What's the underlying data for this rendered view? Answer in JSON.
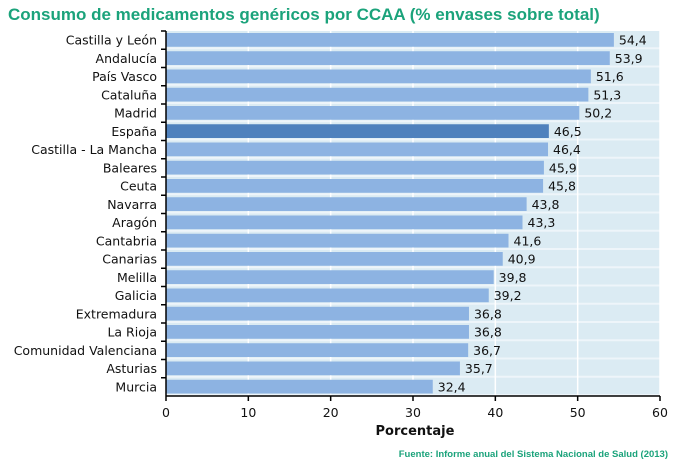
{
  "chart_data": {
    "type": "bar",
    "orientation": "horizontal",
    "title": "Consumo de medicamentos genéricos por CCAA (% envases sobre total)",
    "xlabel": "Porcentaje",
    "ylabel": "",
    "xlim": [
      0,
      60
    ],
    "xticks": [
      0,
      10,
      20,
      30,
      40,
      50,
      60
    ],
    "grid": true,
    "categories": [
      "Castilla y León",
      "Andalucía",
      "País Vasco",
      "Cataluña",
      "Madrid",
      "España",
      "Castilla - La Mancha",
      "Baleares",
      "Ceuta",
      "Navarra",
      "Aragón",
      "Cantabria",
      "Canarias",
      "Melilla",
      "Galicia",
      "Extremadura",
      "La Rioja",
      "Comunidad Valenciana",
      "Asturias",
      "Murcia"
    ],
    "values": [
      54.4,
      53.9,
      51.6,
      51.3,
      50.2,
      46.5,
      46.4,
      45.9,
      45.8,
      43.8,
      43.3,
      41.6,
      40.9,
      39.8,
      39.2,
      36.8,
      36.8,
      36.7,
      35.7,
      32.4
    ],
    "value_labels": [
      "54,4",
      "53,9",
      "51,6",
      "51,3",
      "50,2",
      "46,5",
      "46,4",
      "45,9",
      "45,8",
      "43,8",
      "43,3",
      "41,6",
      "40,9",
      "39,8",
      "39,2",
      "36,8",
      "36,8",
      "36,7",
      "35,7",
      "32,4"
    ],
    "highlight": "España",
    "colors": {
      "bar": "#8db3e2",
      "highlight": "#4f81bd",
      "plot_background": "#dbebf3",
      "title": "#1ba37b"
    },
    "source": "Fuente: Informe anual del Sistema Nacional de Salud (2013)"
  }
}
